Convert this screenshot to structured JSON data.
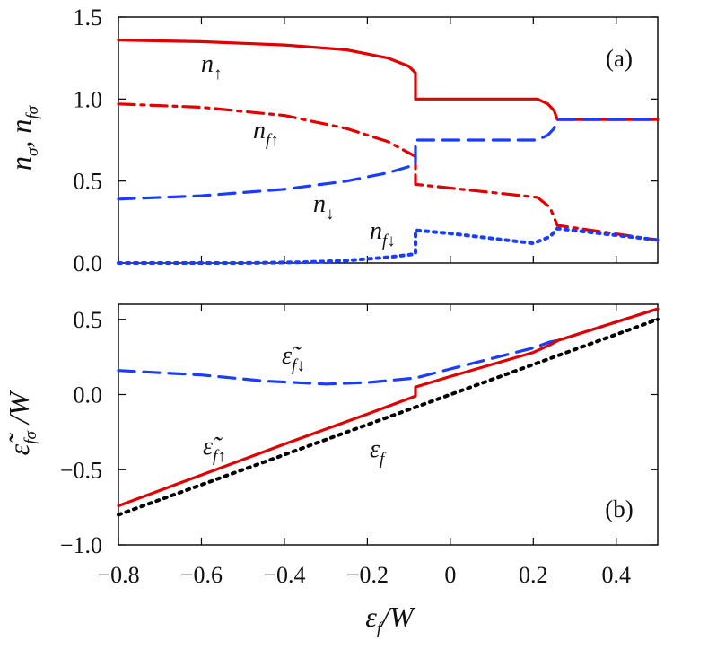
{
  "chart_data": [
    {
      "type": "line",
      "panel_label": "(a)",
      "ylabel_parts": [
        "n",
        "σ",
        ", ",
        "n",
        "fσ"
      ],
      "xlim": [
        -0.8,
        0.5
      ],
      "ylim": [
        0.0,
        1.5
      ],
      "x_ticks": [
        -0.8,
        -0.6,
        -0.4,
        -0.2,
        0,
        0.2,
        0.4
      ],
      "y_ticks": [
        0.0,
        0.5,
        1.0,
        1.5
      ],
      "y_tick_labels": [
        "0.0",
        "0.5",
        "1.0",
        "1.5"
      ],
      "grid": false,
      "series": [
        {
          "name": "n↑",
          "label_parts": [
            "n",
            "↑"
          ],
          "color": "#e00000",
          "style": "solid",
          "points": [
            [
              -0.8,
              1.36
            ],
            [
              -0.6,
              1.35
            ],
            [
              -0.4,
              1.33
            ],
            [
              -0.25,
              1.3
            ],
            [
              -0.15,
              1.25
            ],
            [
              -0.1,
              1.2
            ],
            [
              -0.084,
              1.16
            ],
            [
              -0.084,
              1.0
            ],
            [
              0.21,
              1.0
            ],
            [
              0.235,
              0.97
            ],
            [
              0.25,
              0.93
            ],
            [
              0.258,
              0.875
            ],
            [
              0.5,
              0.875
            ]
          ]
        },
        {
          "name": "nf↑",
          "label_parts": [
            "n",
            "f↑"
          ],
          "color": "#e00000",
          "style": "dashdot",
          "points": [
            [
              -0.8,
              0.97
            ],
            [
              -0.6,
              0.95
            ],
            [
              -0.4,
              0.9
            ],
            [
              -0.25,
              0.82
            ],
            [
              -0.15,
              0.74
            ],
            [
              -0.084,
              0.65
            ],
            [
              -0.084,
              0.48
            ],
            [
              0.21,
              0.4
            ],
            [
              0.24,
              0.34
            ],
            [
              0.258,
              0.23
            ],
            [
              0.5,
              0.14
            ]
          ]
        },
        {
          "name": "n↓",
          "label_parts": [
            "n",
            "↓"
          ],
          "color": "#1a3cff",
          "style": "dashed",
          "points": [
            [
              -0.8,
              0.39
            ],
            [
              -0.6,
              0.41
            ],
            [
              -0.4,
              0.45
            ],
            [
              -0.25,
              0.5
            ],
            [
              -0.15,
              0.55
            ],
            [
              -0.084,
              0.6
            ],
            [
              -0.084,
              0.75
            ],
            [
              0.21,
              0.75
            ],
            [
              0.235,
              0.78
            ],
            [
              0.25,
              0.82
            ],
            [
              0.258,
              0.875
            ],
            [
              0.5,
              0.875
            ]
          ]
        },
        {
          "name": "nf↓",
          "label_parts": [
            "n",
            "f↓"
          ],
          "color": "#1a3cff",
          "style": "dotted",
          "points": [
            [
              -0.8,
              0.0
            ],
            [
              -0.5,
              0.0
            ],
            [
              -0.35,
              0.005
            ],
            [
              -0.25,
              0.015
            ],
            [
              -0.15,
              0.035
            ],
            [
              -0.084,
              0.055
            ],
            [
              -0.084,
              0.2
            ],
            [
              0.0,
              0.18
            ],
            [
              0.1,
              0.15
            ],
            [
              0.2,
              0.12
            ],
            [
              0.24,
              0.16
            ],
            [
              0.258,
              0.21
            ],
            [
              0.5,
              0.14
            ]
          ]
        }
      ]
    },
    {
      "type": "line",
      "panel_label": "(b)",
      "xlabel_parts": [
        "ε",
        "f",
        "/W"
      ],
      "ylabel_parts": [
        "ε̃",
        "fσ",
        " /W"
      ],
      "xlim": [
        -0.8,
        0.5
      ],
      "ylim": [
        -1.0,
        0.6
      ],
      "x_ticks": [
        -0.8,
        -0.6,
        -0.4,
        -0.2,
        0,
        0.2,
        0.4
      ],
      "x_tick_labels": [
        "−0.8",
        "−0.6",
        "−0.4",
        "−0.2",
        "0",
        "0.2",
        "0.4"
      ],
      "y_ticks": [
        -1.0,
        -0.5,
        0.0,
        0.5
      ],
      "y_tick_labels": [
        "−1.0",
        "−0.5",
        "0.0",
        "0.5"
      ],
      "grid": false,
      "series": [
        {
          "name": "ε̃f↓",
          "label_parts": [
            "ε̃",
            "f↓"
          ],
          "color": "#1a3cff",
          "style": "dashed",
          "points": [
            [
              -0.8,
              0.16
            ],
            [
              -0.6,
              0.13
            ],
            [
              -0.45,
              0.09
            ],
            [
              -0.3,
              0.07
            ],
            [
              -0.2,
              0.08
            ],
            [
              -0.084,
              0.11
            ],
            [
              0.0,
              0.17
            ],
            [
              0.1,
              0.24
            ],
            [
              0.2,
              0.31
            ],
            [
              0.24,
              0.35
            ],
            [
              0.26,
              0.36
            ],
            [
              0.5,
              0.57
            ]
          ]
        },
        {
          "name": "ε̃f↑",
          "label_parts": [
            "ε̃",
            "f↑"
          ],
          "color": "#e00000",
          "style": "solid",
          "points": [
            [
              -0.8,
              -0.74
            ],
            [
              -0.4,
              -0.33
            ],
            [
              -0.2,
              -0.13
            ],
            [
              -0.084,
              -0.01
            ],
            [
              -0.084,
              0.05
            ],
            [
              0.0,
              0.12
            ],
            [
              0.1,
              0.2
            ],
            [
              0.2,
              0.28
            ],
            [
              0.24,
              0.33
            ],
            [
              0.26,
              0.36
            ],
            [
              0.5,
              0.57
            ]
          ]
        },
        {
          "name": "εf",
          "label_parts": [
            "ε",
            "f"
          ],
          "color": "#000000",
          "style": "dotted",
          "points": [
            [
              -0.8,
              -0.8
            ],
            [
              0.5,
              0.5
            ]
          ]
        }
      ]
    }
  ]
}
